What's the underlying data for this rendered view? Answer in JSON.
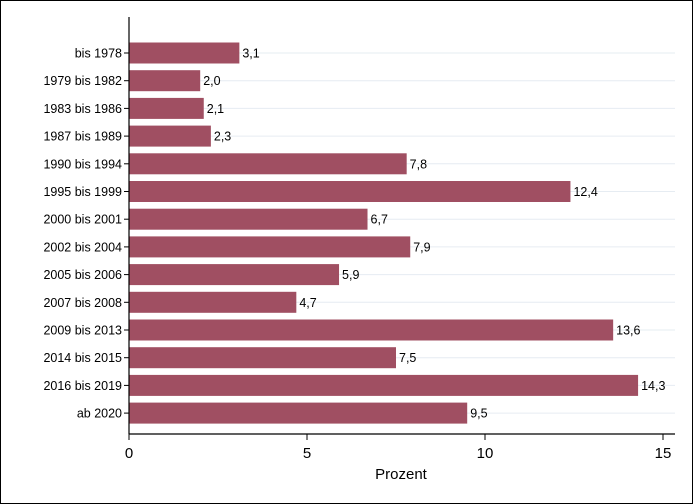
{
  "chart_data": {
    "type": "bar",
    "orientation": "horizontal",
    "categories": [
      "bis 1978",
      "1979 bis 1982",
      "1983 bis 1986",
      "1987 bis 1989",
      "1990 bis 1994",
      "1995 bis 1999",
      "2000 bis 2001",
      "2002 bis 2004",
      "2005 bis 2006",
      "2007 bis 2008",
      "2009 bis 2013",
      "2014 bis 2015",
      "2016 bis 2019",
      "ab 2020"
    ],
    "values": [
      3.1,
      2.0,
      2.1,
      2.3,
      7.8,
      12.4,
      6.7,
      7.9,
      5.9,
      4.7,
      13.6,
      7.5,
      14.3,
      9.5
    ],
    "value_labels": [
      "3,1",
      "2,0",
      "2,1",
      "2,3",
      "7,8",
      "12,4",
      "6,7",
      "7,9",
      "5,9",
      "4,7",
      "13,6",
      "7,5",
      "14,3",
      "9,5"
    ],
    "xlabel": "Prozent",
    "xlim": [
      0,
      15
    ],
    "xticks": [
      0,
      5,
      10,
      15
    ],
    "bar_color": "#a04f62",
    "grid": true,
    "legend": "none"
  }
}
